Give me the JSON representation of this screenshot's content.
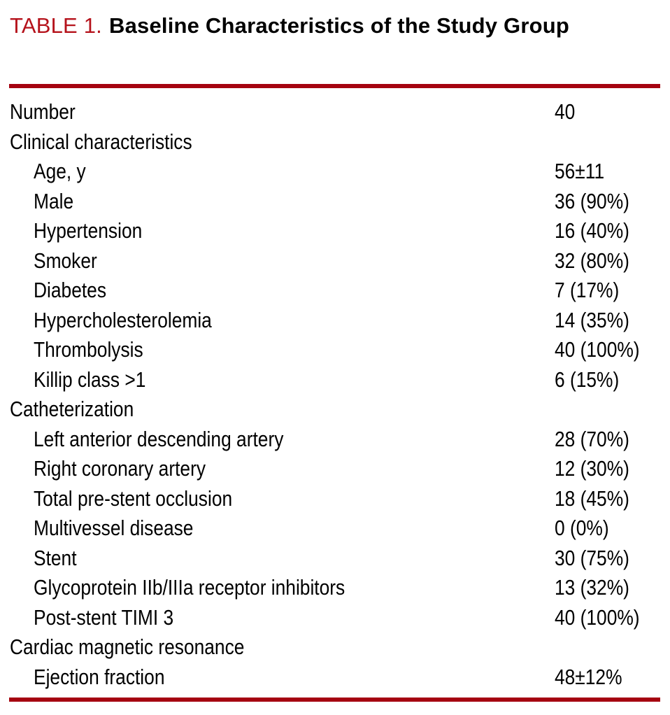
{
  "title": {
    "table_label": "TABLE 1.",
    "table_title": "Baseline Characteristics of the Study Group"
  },
  "colors": {
    "accent_red": "#B5121B",
    "rule_red": "#A50210",
    "text": "#000000",
    "background": "#FFFFFF"
  },
  "table": {
    "rows": [
      {
        "label": "Number",
        "value": "40",
        "indent": 0
      },
      {
        "label": "Clinical characteristics",
        "value": "",
        "indent": 0
      },
      {
        "label": "Age, y",
        "value": "56±11",
        "indent": 1
      },
      {
        "label": "Male",
        "value": "36 (90%)",
        "indent": 1
      },
      {
        "label": "Hypertension",
        "value": "16 (40%)",
        "indent": 1
      },
      {
        "label": "Smoker",
        "value": "32 (80%)",
        "indent": 1
      },
      {
        "label": "Diabetes",
        "value": "7 (17%)",
        "indent": 1
      },
      {
        "label": "Hypercholesterolemia",
        "value": "14 (35%)",
        "indent": 1
      },
      {
        "label": "Thrombolysis",
        "value": "40 (100%)",
        "indent": 1
      },
      {
        "label": "Killip class >1",
        "value": "6 (15%)",
        "indent": 1
      },
      {
        "label": "Catheterization",
        "value": "",
        "indent": 0
      },
      {
        "label": "Left anterior descending artery",
        "value": "28 (70%)",
        "indent": 1
      },
      {
        "label": "Right coronary artery",
        "value": "12 (30%)",
        "indent": 1
      },
      {
        "label": "Total pre-stent occlusion",
        "value": "18 (45%)",
        "indent": 1
      },
      {
        "label": "Multivessel disease",
        "value": "0 (0%)",
        "indent": 1
      },
      {
        "label": "Stent",
        "value": "30 (75%)",
        "indent": 1
      },
      {
        "label": "Glycoprotein IIb/IIIa receptor inhibitors",
        "value": "13 (32%)",
        "indent": 1
      },
      {
        "label": "Post-stent TIMI 3",
        "value": "40 (100%)",
        "indent": 1
      },
      {
        "label": "Cardiac magnetic resonance",
        "value": "",
        "indent": 0
      },
      {
        "label": "Ejection fraction",
        "value": "48±12%",
        "indent": 1
      }
    ]
  }
}
